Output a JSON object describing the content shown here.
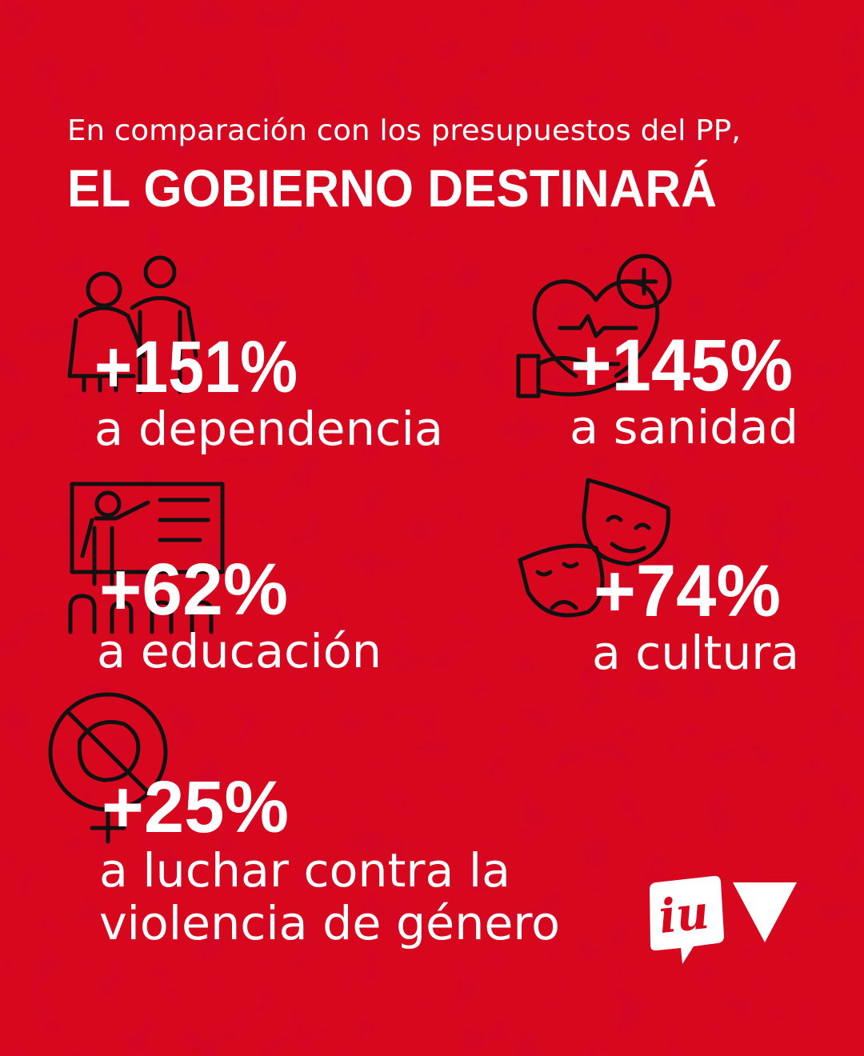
{
  "header": {
    "subtitle": "En comparación con los presupuestos del PP,",
    "title": "EL GOBIERNO DESTINARÁ"
  },
  "items": [
    {
      "value": "+151%",
      "lines": [
        "a dependencia"
      ]
    },
    {
      "value": "+145%",
      "lines": [
        "a sanidad"
      ]
    },
    {
      "value": "+62%",
      "lines": [
        "a educación"
      ]
    },
    {
      "value": "+74%",
      "lines": [
        "a cultura"
      ]
    },
    {
      "value": "+25%",
      "lines": [
        "a luchar contra la",
        "violencia de género"
      ]
    }
  ],
  "logo": {
    "text": "iu"
  }
}
